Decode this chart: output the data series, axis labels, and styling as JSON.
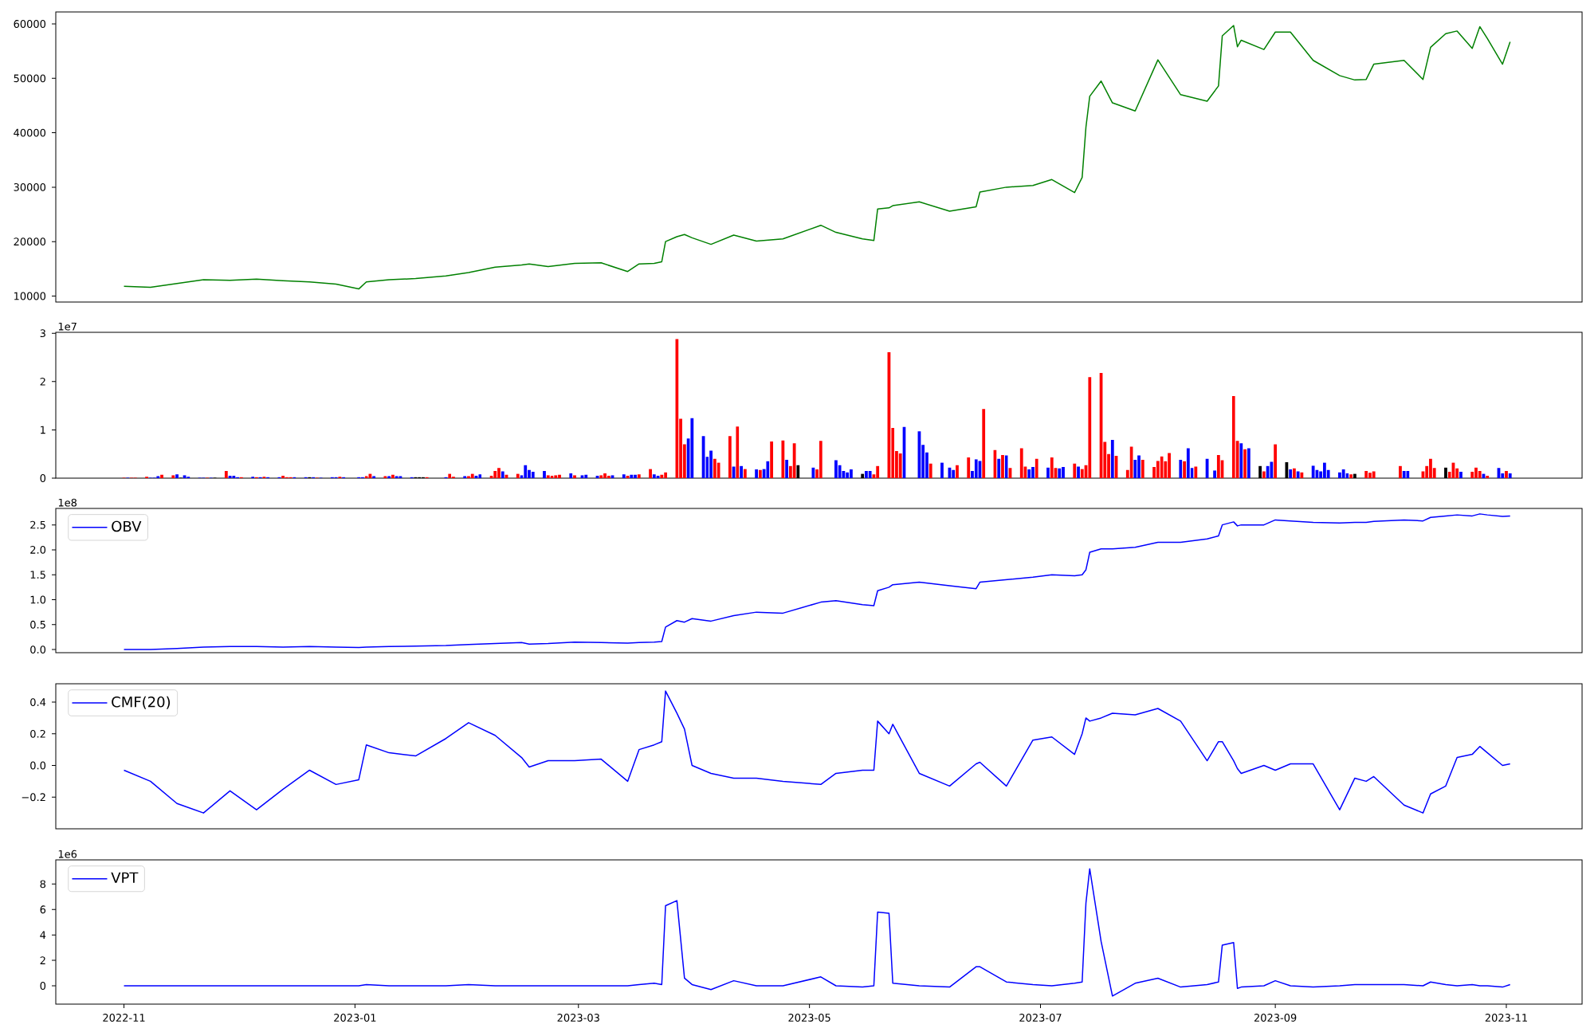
{
  "chart_data": [
    {
      "type": "line",
      "xlim": [
        "2022-10-14",
        "2023-11-21"
      ],
      "ylim": [
        8900,
        62200
      ],
      "yticks": [
        10000,
        20000,
        30000,
        40000,
        50000,
        60000
      ],
      "tick_labels": "y",
      "x": [
        "2022-11-01",
        "2022-11-08",
        "2022-11-15",
        "2022-11-22",
        "2022-11-29",
        "2022-12-06",
        "2022-12-13",
        "2022-12-20",
        "2022-12-27",
        "2023-01-02",
        "2023-01-04",
        "2023-01-10",
        "2023-01-17",
        "2023-01-25",
        "2023-01-31",
        "2023-02-07",
        "2023-02-14",
        "2023-02-16",
        "2023-02-21",
        "2023-02-28",
        "2023-03-07",
        "2023-03-14",
        "2023-03-17",
        "2023-03-21",
        "2023-03-23",
        "2023-03-24",
        "2023-03-27",
        "2023-03-29",
        "2023-03-31",
        "2023-04-05",
        "2023-04-11",
        "2023-04-17",
        "2023-04-24",
        "2023-05-04",
        "2023-05-08",
        "2023-05-15",
        "2023-05-18",
        "2023-05-19",
        "2023-05-22",
        "2023-05-23",
        "2023-05-30",
        "2023-06-07",
        "2023-06-14",
        "2023-06-15",
        "2023-06-22",
        "2023-06-29",
        "2023-07-04",
        "2023-07-10",
        "2023-07-12",
        "2023-07-13",
        "2023-07-14",
        "2023-07-17",
        "2023-07-20",
        "2023-07-26",
        "2023-08-01",
        "2023-08-07",
        "2023-08-14",
        "2023-08-17",
        "2023-08-18",
        "2023-08-21",
        "2023-08-22",
        "2023-08-23",
        "2023-08-29",
        "2023-09-01",
        "2023-09-05",
        "2023-09-11",
        "2023-09-18",
        "2023-09-22",
        "2023-09-25",
        "2023-09-27",
        "2023-10-05",
        "2023-10-10",
        "2023-10-12",
        "2023-10-16",
        "2023-10-19",
        "2023-10-23",
        "2023-10-25",
        "2023-10-27",
        "2023-10-31",
        "2023-11-02"
      ],
      "series": [
        {
          "color": "#008000",
          "values": [
            11800,
            11600,
            12300,
            13000,
            12900,
            13100,
            12800,
            12600,
            12200,
            11300,
            12600,
            13000,
            13200,
            13700,
            14300,
            15300,
            15700,
            15900,
            15400,
            16000,
            16100,
            14500,
            15900,
            16000,
            16300,
            20000,
            20900,
            21300,
            20700,
            19500,
            21200,
            20100,
            20500,
            23000,
            21700,
            20500,
            20200,
            26000,
            26200,
            26600,
            27300,
            25600,
            26400,
            29100,
            30000,
            30300,
            31400,
            29000,
            31800,
            41000,
            46700,
            49500,
            45500,
            44000,
            53400,
            47000,
            45800,
            48600,
            57800,
            59700,
            55800,
            57000,
            55300,
            58500,
            58500,
            53300,
            50500,
            49700,
            49800,
            52600,
            53300,
            49800,
            55700,
            58200,
            58700,
            55500,
            59500,
            57300,
            52600,
            56700
          ]
        }
      ]
    },
    {
      "type": "bar",
      "xlim": [
        "2022-10-14",
        "2023-11-21"
      ],
      "ylim": [
        0,
        3.02
      ],
      "yticks": [
        0,
        1,
        2,
        3
      ],
      "tick_labels": "y",
      "annotations": [
        "1e7"
      ],
      "x": [
        "2022-11-01",
        "2022-11-02",
        "2022-11-03",
        "2022-11-04",
        "2022-11-07",
        "2022-11-08",
        "2022-11-09",
        "2022-11-10",
        "2022-11-11",
        "2022-11-14",
        "2022-11-15",
        "2022-11-16",
        "2022-11-17",
        "2022-11-18",
        "2022-11-21",
        "2022-11-22",
        "2022-11-23",
        "2022-11-24",
        "2022-11-25",
        "2022-11-28",
        "2022-11-29",
        "2022-11-30",
        "2022-12-01",
        "2022-12-02",
        "2022-12-05",
        "2022-12-06",
        "2022-12-07",
        "2022-12-08",
        "2022-12-09",
        "2022-12-12",
        "2022-12-13",
        "2022-12-14",
        "2022-12-15",
        "2022-12-16",
        "2022-12-19",
        "2022-12-20",
        "2022-12-21",
        "2022-12-22",
        "2022-12-23",
        "2022-12-26",
        "2022-12-27",
        "2022-12-28",
        "2022-12-29",
        "2023-01-02",
        "2023-01-03",
        "2023-01-04",
        "2023-01-05",
        "2023-01-06",
        "2023-01-09",
        "2023-01-10",
        "2023-01-11",
        "2023-01-12",
        "2023-01-13",
        "2023-01-16",
        "2023-01-17",
        "2023-01-18",
        "2023-01-19",
        "2023-01-20",
        "2023-01-25",
        "2023-01-26",
        "2023-01-27",
        "2023-01-30",
        "2023-01-31",
        "2023-02-01",
        "2023-02-02",
        "2023-02-03",
        "2023-02-06",
        "2023-02-07",
        "2023-02-08",
        "2023-02-09",
        "2023-02-10",
        "2023-02-13",
        "2023-02-14",
        "2023-02-15",
        "2023-02-16",
        "2023-02-17",
        "2023-02-20",
        "2023-02-21",
        "2023-02-22",
        "2023-02-23",
        "2023-02-24",
        "2023-02-27",
        "2023-02-28",
        "2023-03-02",
        "2023-03-03",
        "2023-03-06",
        "2023-03-07",
        "2023-03-08",
        "2023-03-09",
        "2023-03-10",
        "2023-03-13",
        "2023-03-14",
        "2023-03-15",
        "2023-03-16",
        "2023-03-17",
        "2023-03-20",
        "2023-03-21",
        "2023-03-22",
        "2023-03-23",
        "2023-03-24",
        "2023-03-27",
        "2023-03-28",
        "2023-03-29",
        "2023-03-30",
        "2023-03-31",
        "2023-04-03",
        "2023-04-04",
        "2023-04-05",
        "2023-04-06",
        "2023-04-07",
        "2023-04-10",
        "2023-04-11",
        "2023-04-12",
        "2023-04-13",
        "2023-04-14",
        "2023-04-17",
        "2023-04-18",
        "2023-04-19",
        "2023-04-20",
        "2023-04-21",
        "2023-04-24",
        "2023-04-25",
        "2023-04-26",
        "2023-04-27",
        "2023-04-28",
        "2023-05-02",
        "2023-05-03",
        "2023-05-04",
        "2023-05-08",
        "2023-05-09",
        "2023-05-10",
        "2023-05-11",
        "2023-05-12",
        "2023-05-15",
        "2023-05-16",
        "2023-05-17",
        "2023-05-18",
        "2023-05-19",
        "2023-05-22",
        "2023-05-23",
        "2023-05-24",
        "2023-05-25",
        "2023-05-26",
        "2023-05-30",
        "2023-05-31",
        "2023-06-01",
        "2023-06-02",
        "2023-06-05",
        "2023-06-07",
        "2023-06-08",
        "2023-06-09",
        "2023-06-12",
        "2023-06-13",
        "2023-06-14",
        "2023-06-15",
        "2023-06-16",
        "2023-06-19",
        "2023-06-20",
        "2023-06-21",
        "2023-06-22",
        "2023-06-23",
        "2023-06-26",
        "2023-06-27",
        "2023-06-28",
        "2023-06-29",
        "2023-06-30",
        "2023-07-03",
        "2023-07-04",
        "2023-07-05",
        "2023-07-06",
        "2023-07-07",
        "2023-07-10",
        "2023-07-11",
        "2023-07-12",
        "2023-07-13",
        "2023-07-14",
        "2023-07-17",
        "2023-07-18",
        "2023-07-19",
        "2023-07-20",
        "2023-07-21",
        "2023-07-24",
        "2023-07-25",
        "2023-07-26",
        "2023-07-27",
        "2023-07-28",
        "2023-07-31",
        "2023-08-01",
        "2023-08-02",
        "2023-08-03",
        "2023-08-04",
        "2023-08-07",
        "2023-08-08",
        "2023-08-09",
        "2023-08-10",
        "2023-08-11",
        "2023-08-14",
        "2023-08-16",
        "2023-08-17",
        "2023-08-18",
        "2023-08-21",
        "2023-08-22",
        "2023-08-23",
        "2023-08-24",
        "2023-08-25",
        "2023-08-28",
        "2023-08-29",
        "2023-08-30",
        "2023-08-31",
        "2023-09-01",
        "2023-09-04",
        "2023-09-05",
        "2023-09-06",
        "2023-09-07",
        "2023-09-08",
        "2023-09-11",
        "2023-09-12",
        "2023-09-13",
        "2023-09-14",
        "2023-09-15",
        "2023-09-18",
        "2023-09-19",
        "2023-09-20",
        "2023-09-21",
        "2023-09-22",
        "2023-09-25",
        "2023-09-26",
        "2023-09-27",
        "2023-10-04",
        "2023-10-05",
        "2023-10-06",
        "2023-10-10",
        "2023-10-11",
        "2023-10-12",
        "2023-10-13",
        "2023-10-16",
        "2023-10-17",
        "2023-10-18",
        "2023-10-19",
        "2023-10-20",
        "2023-10-23",
        "2023-10-24",
        "2023-10-25",
        "2023-10-26",
        "2023-10-27",
        "2023-10-30",
        "2023-10-31",
        "2023-11-01",
        "2023-11-02"
      ],
      "values": [
        0.01,
        0.01,
        0.01,
        0.01,
        0.03,
        0.01,
        0.01,
        0.04,
        0.07,
        0.06,
        0.08,
        0.01,
        0.06,
        0.03,
        0.01,
        0.01,
        0.01,
        0.01,
        0.01,
        0.15,
        0.05,
        0.05,
        0.02,
        0.02,
        0.03,
        0.02,
        0.02,
        0.03,
        0.02,
        0.02,
        0.05,
        0.02,
        0.02,
        0.02,
        0.02,
        0.02,
        0.02,
        0.01,
        0.01,
        0.02,
        0.02,
        0.03,
        0.02,
        0.02,
        0.02,
        0.04,
        0.09,
        0.04,
        0.04,
        0.04,
        0.07,
        0.04,
        0.04,
        0.02,
        0.02,
        0.02,
        0.02,
        0.02,
        0.02,
        0.09,
        0.03,
        0.04,
        0.04,
        0.09,
        0.05,
        0.08,
        0.05,
        0.15,
        0.21,
        0.14,
        0.07,
        0.09,
        0.06,
        0.27,
        0.17,
        0.13,
        0.15,
        0.06,
        0.05,
        0.06,
        0.07,
        0.1,
        0.06,
        0.06,
        0.07,
        0.05,
        0.06,
        0.1,
        0.05,
        0.06,
        0.08,
        0.05,
        0.07,
        0.07,
        0.08,
        0.19,
        0.08,
        0.05,
        0.07,
        0.12,
        2.88,
        1.23,
        0.7,
        0.82,
        1.24,
        0.87,
        0.44,
        0.57,
        0.4,
        0.32,
        0.87,
        0.24,
        1.07,
        0.25,
        0.19,
        0.18,
        0.17,
        0.19,
        0.35,
        0.76,
        0.78,
        0.38,
        0.25,
        0.72,
        0.27,
        0.22,
        0.18,
        0.77,
        0.37,
        0.27,
        0.15,
        0.12,
        0.18,
        0.09,
        0.15,
        0.15,
        0.08,
        0.25,
        2.61,
        1.04,
        0.56,
        0.51,
        1.06,
        0.97,
        0.69,
        0.53,
        0.3,
        0.32,
        0.22,
        0.17,
        0.27,
        0.43,
        0.15,
        0.39,
        0.36,
        1.43,
        0.58,
        0.4,
        0.48,
        0.47,
        0.21,
        0.62,
        0.24,
        0.18,
        0.23,
        0.4,
        0.22,
        0.43,
        0.21,
        0.2,
        0.23,
        0.3,
        0.24,
        0.19,
        0.27,
        2.09,
        2.18,
        0.75,
        0.5,
        0.79,
        0.46,
        0.17,
        0.65,
        0.38,
        0.47,
        0.38,
        0.23,
        0.36,
        0.45,
        0.35,
        0.52,
        0.38,
        0.35,
        0.62,
        0.21,
        0.24,
        0.4,
        0.16,
        0.48,
        0.37,
        1.7,
        0.77,
        0.72,
        0.6,
        0.62,
        0.25,
        0.14,
        0.25,
        0.34,
        0.7,
        0.33,
        0.18,
        0.2,
        0.14,
        0.12,
        0.26,
        0.17,
        0.14,
        0.32,
        0.17,
        0.12,
        0.18,
        0.1,
        0.08,
        0.09,
        0.15,
        0.11,
        0.14,
        0.25,
        0.15,
        0.15,
        0.14,
        0.25,
        0.4,
        0.21,
        0.22,
        0.13,
        0.32,
        0.2,
        0.13,
        0.13,
        0.22,
        0.15,
        0.09,
        0.05,
        0.21,
        0.1,
        0.15,
        0.1
      ],
      "colors": [
        "#ff0000",
        "#0000ff",
        "#ff0000",
        "#ff0000",
        "#ff0000",
        "#0000ff",
        "#0000ff",
        "#0000ff",
        "#ff0000",
        "#ff0000",
        "#0000ff",
        "#000000",
        "#0000ff",
        "#0000ff",
        "#0000ff",
        "#0000ff",
        "#ff0000",
        "#0000ff",
        "#000000",
        "#ff0000",
        "#0000ff",
        "#0000ff",
        "#0000ff",
        "#ff0000",
        "#0000ff",
        "#ff0000",
        "#0000ff",
        "#ff0000",
        "#0000ff",
        "#0000ff",
        "#ff0000",
        "#ff0000",
        "#ff0000",
        "#0000ff",
        "#0000ff",
        "#000000",
        "#0000ff",
        "#ff0000",
        "#0000ff",
        "#0000ff",
        "#0000ff",
        "#ff0000",
        "#0000ff",
        "#0000ff",
        "#0000ff",
        "#ff0000",
        "#ff0000",
        "#0000ff",
        "#ff0000",
        "#0000ff",
        "#ff0000",
        "#0000ff",
        "#0000ff",
        "#0000ff",
        "#000000",
        "#000000",
        "#000000",
        "#ff0000",
        "#0000ff",
        "#ff0000",
        "#ff0000",
        "#0000ff",
        "#ff0000",
        "#ff0000",
        "#0000ff",
        "#0000ff",
        "#ff0000",
        "#ff0000",
        "#ff0000",
        "#0000ff",
        "#ff0000",
        "#ff0000",
        "#0000ff",
        "#0000ff",
        "#0000ff",
        "#0000ff",
        "#0000ff",
        "#ff0000",
        "#ff0000",
        "#ff0000",
        "#ff0000",
        "#0000ff",
        "#ff0000",
        "#0000ff",
        "#0000ff",
        "#0000ff",
        "#ff0000",
        "#ff0000",
        "#ff0000",
        "#0000ff",
        "#0000ff",
        "#ff0000",
        "#0000ff",
        "#0000ff",
        "#ff0000",
        "#ff0000",
        "#0000ff",
        "#0000ff",
        "#ff0000",
        "#ff0000",
        "#ff0000",
        "#ff0000",
        "#ff0000",
        "#0000ff",
        "#0000ff",
        "#0000ff",
        "#0000ff",
        "#0000ff",
        "#ff0000",
        "#ff0000",
        "#ff0000",
        "#0000ff",
        "#ff0000",
        "#0000ff",
        "#ff0000",
        "#0000ff",
        "#ff0000",
        "#0000ff",
        "#0000ff",
        "#ff0000",
        "#ff0000",
        "#0000ff",
        "#ff0000",
        "#ff0000",
        "#000000",
        "#0000ff",
        "#ff0000",
        "#ff0000",
        "#0000ff",
        "#0000ff",
        "#0000ff",
        "#0000ff",
        "#0000ff",
        "#000000",
        "#0000ff",
        "#0000ff",
        "#ff0000",
        "#ff0000",
        "#ff0000",
        "#ff0000",
        "#ff0000",
        "#ff0000",
        "#0000ff",
        "#0000ff",
        "#0000ff",
        "#0000ff",
        "#ff0000",
        "#0000ff",
        "#0000ff",
        "#0000ff",
        "#ff0000",
        "#ff0000",
        "#0000ff",
        "#0000ff",
        "#0000ff",
        "#ff0000",
        "#ff0000",
        "#0000ff",
        "#ff0000",
        "#0000ff",
        "#ff0000",
        "#ff0000",
        "#ff0000",
        "#0000ff",
        "#0000ff",
        "#ff0000",
        "#0000ff",
        "#ff0000",
        "#ff0000",
        "#0000ff",
        "#0000ff",
        "#ff0000",
        "#0000ff",
        "#ff0000",
        "#ff0000",
        "#ff0000",
        "#ff0000",
        "#ff0000",
        "#ff0000",
        "#0000ff",
        "#ff0000",
        "#ff0000",
        "#ff0000",
        "#0000ff",
        "#0000ff",
        "#ff0000",
        "#ff0000",
        "#ff0000",
        "#ff0000",
        "#ff0000",
        "#ff0000",
        "#0000ff",
        "#ff0000",
        "#0000ff",
        "#0000ff",
        "#ff0000",
        "#0000ff",
        "#0000ff",
        "#ff0000",
        "#ff0000",
        "#ff0000",
        "#ff0000",
        "#0000ff",
        "#ff0000",
        "#0000ff",
        "#000000",
        "#ff0000",
        "#0000ff",
        "#0000ff",
        "#ff0000",
        "#000000",
        "#0000ff",
        "#ff0000",
        "#0000ff",
        "#ff0000",
        "#0000ff",
        "#0000ff",
        "#0000ff",
        "#0000ff",
        "#0000ff",
        "#0000ff",
        "#0000ff",
        "#0000ff",
        "#ff0000",
        "#000000",
        "#ff0000",
        "#ff0000",
        "#ff0000",
        "#ff0000",
        "#0000ff",
        "#0000ff",
        "#ff0000",
        "#ff0000",
        "#ff0000",
        "#ff0000",
        "#000000",
        "#ff0000",
        "#ff0000",
        "#ff0000",
        "#0000ff",
        "#ff0000",
        "#ff0000",
        "#ff0000",
        "#0000ff",
        "#ff0000",
        "#0000ff",
        "#0000ff",
        "#ff0000",
        "#0000ff"
      ]
    },
    {
      "type": "line",
      "xlim": [
        "2022-10-14",
        "2023-11-21"
      ],
      "ylim": [
        -0.063,
        2.83
      ],
      "yticks": [
        {
          "value": 0,
          "label": "0.0"
        },
        0.5,
        {
          "value": 1,
          "label": "1.0"
        },
        1.5,
        {
          "value": 2,
          "label": "2.0"
        },
        2.5
      ],
      "tick_labels": "y",
      "legend": "top left",
      "annotations": [
        "1e8"
      ],
      "x": [
        "2022-11-01",
        "2022-11-08",
        "2022-11-15",
        "2022-11-22",
        "2022-11-29",
        "2022-12-06",
        "2022-12-13",
        "2022-12-20",
        "2022-12-27",
        "2023-01-02",
        "2023-01-04",
        "2023-01-10",
        "2023-01-17",
        "2023-01-25",
        "2023-01-31",
        "2023-02-07",
        "2023-02-14",
        "2023-02-16",
        "2023-02-21",
        "2023-02-28",
        "2023-03-07",
        "2023-03-14",
        "2023-03-17",
        "2023-03-21",
        "2023-03-23",
        "2023-03-24",
        "2023-03-27",
        "2023-03-29",
        "2023-03-31",
        "2023-04-05",
        "2023-04-11",
        "2023-04-17",
        "2023-04-24",
        "2023-05-04",
        "2023-05-08",
        "2023-05-15",
        "2023-05-18",
        "2023-05-19",
        "2023-05-22",
        "2023-05-23",
        "2023-05-30",
        "2023-06-07",
        "2023-06-14",
        "2023-06-15",
        "2023-06-22",
        "2023-06-29",
        "2023-07-04",
        "2023-07-10",
        "2023-07-12",
        "2023-07-13",
        "2023-07-14",
        "2023-07-17",
        "2023-07-20",
        "2023-07-26",
        "2023-08-01",
        "2023-08-07",
        "2023-08-14",
        "2023-08-17",
        "2023-08-18",
        "2023-08-21",
        "2023-08-22",
        "2023-08-23",
        "2023-08-29",
        "2023-09-01",
        "2023-09-05",
        "2023-09-11",
        "2023-09-18",
        "2023-09-22",
        "2023-09-25",
        "2023-09-27",
        "2023-10-05",
        "2023-10-10",
        "2023-10-12",
        "2023-10-16",
        "2023-10-19",
        "2023-10-23",
        "2023-10-25",
        "2023-10-27",
        "2023-10-31",
        "2023-11-02"
      ],
      "series": [
        {
          "name": "OBV",
          "color": "#0000ff",
          "values": [
            0,
            0,
            0.02,
            0.05,
            0.06,
            0.06,
            0.05,
            0.06,
            0.05,
            0.04,
            0.05,
            0.06,
            0.07,
            0.08,
            0.1,
            0.12,
            0.14,
            0.11,
            0.12,
            0.15,
            0.14,
            0.13,
            0.14,
            0.15,
            0.16,
            0.45,
            0.58,
            0.55,
            0.62,
            0.57,
            0.68,
            0.75,
            0.73,
            0.95,
            0.98,
            0.9,
            0.88,
            1.18,
            1.25,
            1.3,
            1.35,
            1.28,
            1.22,
            1.35,
            1.4,
            1.45,
            1.5,
            1.48,
            1.5,
            1.6,
            1.95,
            2.02,
            2.02,
            2.05,
            2.15,
            2.15,
            2.22,
            2.28,
            2.5,
            2.56,
            2.48,
            2.5,
            2.5,
            2.6,
            2.58,
            2.55,
            2.54,
            2.55,
            2.55,
            2.57,
            2.6,
            2.58,
            2.65,
            2.68,
            2.7,
            2.68,
            2.72,
            2.7,
            2.67,
            2.68
          ]
        }
      ]
    },
    {
      "type": "line",
      "xlim": [
        "2022-10-14",
        "2023-11-21"
      ],
      "ylim": [
        -0.4,
        0.516
      ],
      "yticks": [
        {
          "value": -0.2,
          "label": "−0.2"
        },
        {
          "value": 0,
          "label": "0.0"
        },
        0.2,
        0.4
      ],
      "tick_labels": "y",
      "legend": "top left",
      "x": [
        "2022-11-01",
        "2022-11-08",
        "2022-11-15",
        "2022-11-22",
        "2022-11-29",
        "2022-12-06",
        "2022-12-13",
        "2022-12-20",
        "2022-12-27",
        "2023-01-02",
        "2023-01-04",
        "2023-01-10",
        "2023-01-17",
        "2023-01-25",
        "2023-01-31",
        "2023-02-07",
        "2023-02-14",
        "2023-02-16",
        "2023-02-21",
        "2023-02-28",
        "2023-03-07",
        "2023-03-14",
        "2023-03-17",
        "2023-03-21",
        "2023-03-23",
        "2023-03-24",
        "2023-03-27",
        "2023-03-29",
        "2023-03-31",
        "2023-04-05",
        "2023-04-11",
        "2023-04-17",
        "2023-04-24",
        "2023-05-04",
        "2023-05-08",
        "2023-05-15",
        "2023-05-18",
        "2023-05-19",
        "2023-05-22",
        "2023-05-23",
        "2023-05-30",
        "2023-06-07",
        "2023-06-14",
        "2023-06-15",
        "2023-06-22",
        "2023-06-29",
        "2023-07-04",
        "2023-07-10",
        "2023-07-12",
        "2023-07-13",
        "2023-07-14",
        "2023-07-17",
        "2023-07-20",
        "2023-07-26",
        "2023-08-01",
        "2023-08-07",
        "2023-08-14",
        "2023-08-17",
        "2023-08-18",
        "2023-08-21",
        "2023-08-22",
        "2023-08-23",
        "2023-08-29",
        "2023-09-01",
        "2023-09-05",
        "2023-09-11",
        "2023-09-18",
        "2023-09-22",
        "2023-09-25",
        "2023-09-27",
        "2023-10-05",
        "2023-10-10",
        "2023-10-12",
        "2023-10-16",
        "2023-10-19",
        "2023-10-23",
        "2023-10-25",
        "2023-10-27",
        "2023-10-31",
        "2023-11-02"
      ],
      "series": [
        {
          "name": "CMF(20)",
          "color": "#0000ff",
          "values": [
            -0.03,
            -0.1,
            -0.24,
            -0.3,
            -0.16,
            -0.28,
            -0.15,
            -0.03,
            -0.12,
            -0.09,
            0.13,
            0.08,
            0.06,
            0.17,
            0.27,
            0.19,
            0.05,
            -0.01,
            0.03,
            0.03,
            0.04,
            -0.1,
            0.1,
            0.13,
            0.15,
            0.47,
            0.33,
            0.23,
            0.0,
            -0.05,
            -0.08,
            -0.08,
            -0.1,
            -0.12,
            -0.05,
            -0.03,
            -0.03,
            0.28,
            0.2,
            0.26,
            -0.05,
            -0.13,
            0.01,
            0.02,
            -0.13,
            0.16,
            0.18,
            0.07,
            0.2,
            0.3,
            0.28,
            0.3,
            0.33,
            0.32,
            0.36,
            0.28,
            0.03,
            0.15,
            0.15,
            0.03,
            -0.02,
            -0.05,
            0.0,
            -0.03,
            0.01,
            0.01,
            -0.28,
            -0.08,
            -0.1,
            -0.07,
            -0.25,
            -0.3,
            -0.18,
            -0.13,
            0.05,
            0.07,
            0.12,
            0.08,
            0.0,
            0.01
          ]
        }
      ]
    },
    {
      "type": "line",
      "xlim": [
        "2022-10-14",
        "2023-11-21"
      ],
      "ylim": [
        -1.44,
        9.9
      ],
      "yticks": [
        0,
        2,
        4,
        6,
        8
      ],
      "xticks": [
        "2022-11",
        "2023-01",
        "2023-03",
        "2023-05",
        "2023-07",
        "2023-09",
        "2023-11"
      ],
      "legend": "top left",
      "annotations": [
        "1e6"
      ],
      "x": [
        "2022-11-01",
        "2022-11-08",
        "2022-11-15",
        "2022-11-22",
        "2022-11-29",
        "2022-12-06",
        "2022-12-13",
        "2022-12-20",
        "2022-12-27",
        "2023-01-02",
        "2023-01-04",
        "2023-01-10",
        "2023-01-17",
        "2023-01-25",
        "2023-01-31",
        "2023-02-07",
        "2023-02-14",
        "2023-02-16",
        "2023-02-21",
        "2023-02-28",
        "2023-03-07",
        "2023-03-14",
        "2023-03-17",
        "2023-03-21",
        "2023-03-23",
        "2023-03-24",
        "2023-03-27",
        "2023-03-29",
        "2023-03-31",
        "2023-04-05",
        "2023-04-11",
        "2023-04-17",
        "2023-04-24",
        "2023-05-04",
        "2023-05-08",
        "2023-05-15",
        "2023-05-18",
        "2023-05-19",
        "2023-05-22",
        "2023-05-23",
        "2023-05-30",
        "2023-06-07",
        "2023-06-14",
        "2023-06-15",
        "2023-06-22",
        "2023-06-29",
        "2023-07-04",
        "2023-07-10",
        "2023-07-12",
        "2023-07-13",
        "2023-07-14",
        "2023-07-17",
        "2023-07-20",
        "2023-07-26",
        "2023-08-01",
        "2023-08-07",
        "2023-08-14",
        "2023-08-17",
        "2023-08-18",
        "2023-08-21",
        "2023-08-22",
        "2023-08-23",
        "2023-08-29",
        "2023-09-01",
        "2023-09-05",
        "2023-09-11",
        "2023-09-18",
        "2023-09-22",
        "2023-09-25",
        "2023-09-27",
        "2023-10-05",
        "2023-10-10",
        "2023-10-12",
        "2023-10-16",
        "2023-10-19",
        "2023-10-23",
        "2023-10-25",
        "2023-10-27",
        "2023-10-31",
        "2023-11-02"
      ],
      "series": [
        {
          "name": "VPT",
          "color": "#0000ff",
          "values": [
            0,
            0,
            0,
            0,
            0,
            0,
            0,
            0,
            0,
            0,
            0.1,
            0,
            0,
            0,
            0.1,
            0,
            0,
            0,
            0,
            0,
            0,
            0,
            0.1,
            0.2,
            0.1,
            6.3,
            6.7,
            0.6,
            0.1,
            -0.3,
            0.4,
            0,
            0,
            0.7,
            0,
            -0.1,
            0,
            5.8,
            5.7,
            0.2,
            0,
            -0.1,
            1.5,
            1.5,
            0.3,
            0.1,
            0,
            0.2,
            0.3,
            6.5,
            9.2,
            3.5,
            -0.8,
            0.2,
            0.6,
            -0.1,
            0.1,
            0.3,
            3.2,
            3.4,
            -0.2,
            -0.1,
            0,
            0.4,
            0,
            -0.1,
            0,
            0.1,
            0.1,
            0.1,
            0.1,
            0,
            0.3,
            0.1,
            0,
            0.1,
            0,
            0,
            -0.1,
            0.1
          ]
        }
      ]
    }
  ]
}
